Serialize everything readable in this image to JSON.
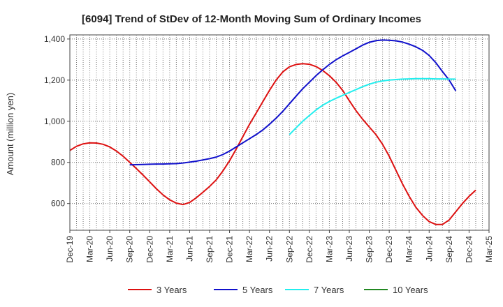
{
  "chart_data": {
    "type": "line",
    "title": "[6094]  Trend of StDev of 12-Month Moving Sum of Ordinary Incomes",
    "xlabel": "",
    "ylabel": "Amount (million yen)",
    "ylim": [
      470,
      1420
    ],
    "yticks": [
      600,
      800,
      1000,
      1200,
      1400
    ],
    "ytick_labels": [
      "600",
      "800",
      "1,000",
      "1,200",
      "1,400"
    ],
    "x_start": "Dec-19",
    "x_end": "Mar-25",
    "tick_labels": [
      "Dec-19",
      "Mar-20",
      "Jun-20",
      "Sep-20",
      "Dec-20",
      "Mar-21",
      "Jun-21",
      "Sep-21",
      "Dec-21",
      "Mar-22",
      "Jun-22",
      "Sep-22",
      "Dec-22",
      "Mar-23",
      "Jun-23",
      "Sep-23",
      "Dec-23",
      "Mar-24",
      "Jun-24",
      "Sep-24",
      "Dec-24",
      "Mar-25"
    ],
    "grid": true,
    "legend_position": "bottom",
    "series": [
      {
        "name": "3 Years",
        "color": "#dd1111",
        "start_month": 0,
        "values": [
          858,
          878,
          890,
          895,
          894,
          888,
          875,
          855,
          830,
          800,
          770,
          738,
          705,
          672,
          642,
          618,
          602,
          595,
          605,
          628,
          655,
          683,
          715,
          758,
          808,
          865,
          925,
          985,
          1040,
          1095,
          1150,
          1200,
          1240,
          1265,
          1276,
          1280,
          1277,
          1266,
          1247,
          1222,
          1190,
          1150,
          1100,
          1052,
          1010,
          972,
          935,
          888,
          830,
          762,
          695,
          635,
          582,
          542,
          512,
          498,
          498,
          520,
          560,
          600,
          635,
          665
        ],
        "legend_label": "3 Years"
      },
      {
        "name": "5 Years",
        "color": "#1111cc",
        "start_month": 9,
        "values": [
          788,
          789,
          790,
          791,
          792,
          792,
          793,
          794,
          797,
          801,
          806,
          812,
          818,
          826,
          838,
          855,
          875,
          895,
          915,
          935,
          958,
          985,
          1015,
          1048,
          1085,
          1122,
          1158,
          1190,
          1222,
          1250,
          1276,
          1299,
          1318,
          1335,
          1352,
          1370,
          1384,
          1392,
          1395,
          1394,
          1391,
          1385,
          1375,
          1362,
          1345,
          1320,
          1285,
          1242,
          1200,
          1148
        ],
        "legend_label": "5 Years"
      },
      {
        "name": "7 Years",
        "color": "#22eeee",
        "start_month": 33,
        "values": [
          935,
          968,
          1000,
          1028,
          1055,
          1078,
          1096,
          1112,
          1126,
          1140,
          1154,
          1168,
          1180,
          1190,
          1196,
          1200,
          1203,
          1205,
          1206,
          1207,
          1207,
          1207,
          1206,
          1206,
          1205,
          1205
        ],
        "legend_label": "7 Years"
      },
      {
        "name": "10 Years",
        "color": "#228822",
        "start_month": 0,
        "values": [],
        "legend_label": "10 Years"
      }
    ]
  }
}
